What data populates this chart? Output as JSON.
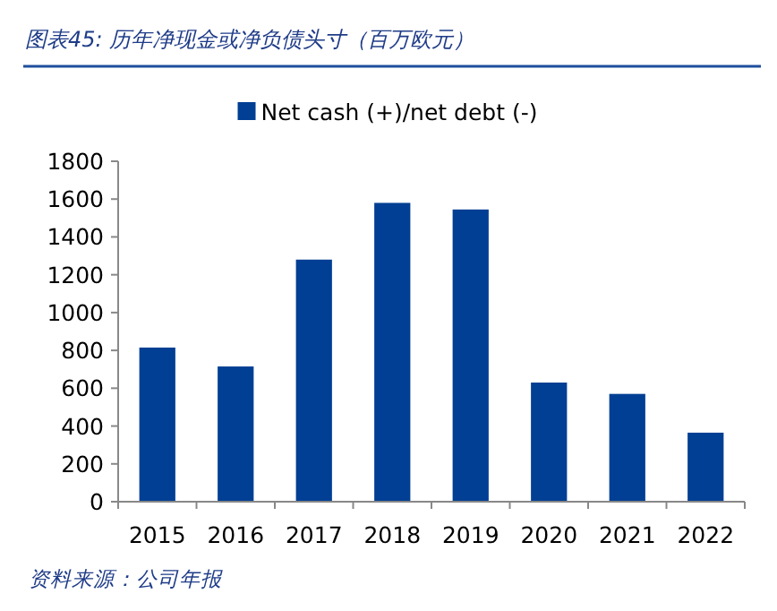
{
  "chart_data": {
    "type": "bar",
    "title": "图表45: 历年净现金或净负债头寸（百万欧元）",
    "categories": [
      "2015",
      "2016",
      "2017",
      "2018",
      "2019",
      "2020",
      "2021",
      "2022"
    ],
    "series": [
      {
        "name": "Net cash (+)/net debt (-)",
        "color": "#003f93",
        "values": [
          815,
          715,
          1280,
          1580,
          1545,
          630,
          570,
          365
        ]
      }
    ],
    "ylim": [
      0,
      1800
    ],
    "yticks": [
      0,
      200,
      400,
      600,
      800,
      1000,
      1200,
      1400,
      1600,
      1800
    ],
    "grid": false,
    "legend": "top",
    "annotations": [
      "资料来源：公司年报"
    ]
  }
}
